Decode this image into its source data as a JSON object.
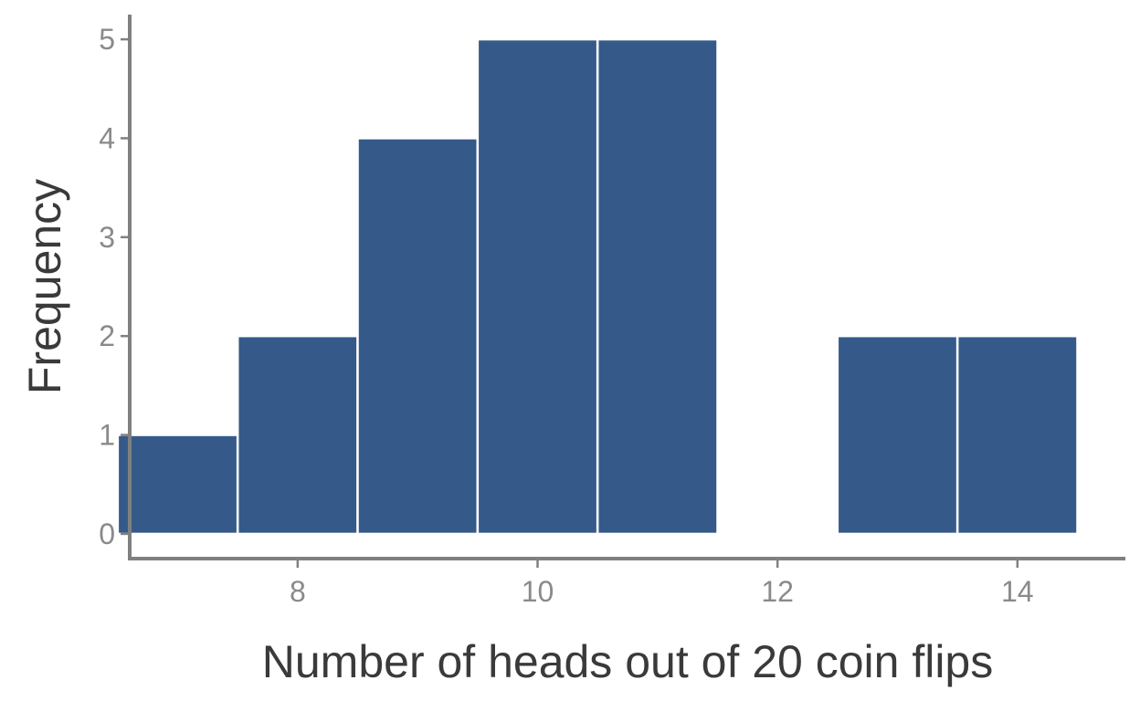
{
  "chart_data": {
    "type": "bar",
    "title": "",
    "xlabel": "Number of heads out of 20 coin flips",
    "ylabel": "Frequency",
    "bins": [
      {
        "x": 7,
        "count": 1
      },
      {
        "x": 8,
        "count": 2
      },
      {
        "x": 9,
        "count": 4
      },
      {
        "x": 10,
        "count": 5
      },
      {
        "x": 11,
        "count": 5
      },
      {
        "x": 12,
        "count": 0
      },
      {
        "x": 13,
        "count": 2
      },
      {
        "x": 14,
        "count": 2
      }
    ],
    "bin_width": 1,
    "xlim": [
      6.6,
      14.9
    ],
    "ylim": [
      -0.25,
      5.25
    ],
    "x_ticks": [
      {
        "value": 8,
        "label": "8"
      },
      {
        "value": 10,
        "label": "10"
      },
      {
        "value": 12,
        "label": "12"
      },
      {
        "value": 14,
        "label": "14"
      }
    ],
    "y_ticks": [
      {
        "value": 0,
        "label": "0"
      },
      {
        "value": 1,
        "label": "1"
      },
      {
        "value": 2,
        "label": "2"
      },
      {
        "value": 3,
        "label": "3"
      },
      {
        "value": 4,
        "label": "4"
      },
      {
        "value": 5,
        "label": "5"
      }
    ],
    "grid": false,
    "legend": "none",
    "colors": {
      "bar_fill": "#355a89",
      "bar_edge": "#ffffff",
      "axis_line": "#808080",
      "tick_text": "#8a8a8a",
      "title_text": "#3a3a3a"
    }
  }
}
